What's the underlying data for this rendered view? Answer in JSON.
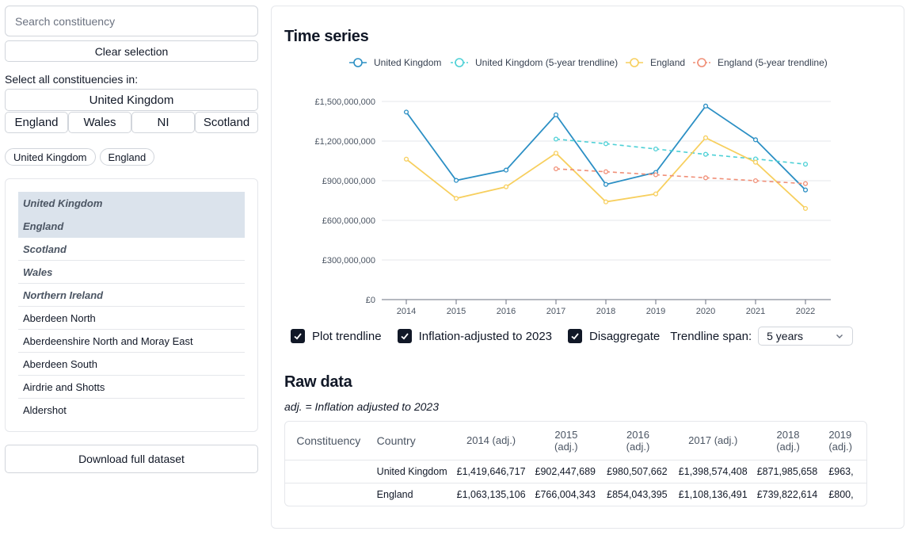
{
  "sidebar": {
    "search_placeholder": "Search constituency",
    "clear_label": "Clear selection",
    "select_all_label": "Select all constituencies in:",
    "uk_button": "United Kingdom",
    "nations": [
      "England",
      "Wales",
      "NI",
      "Scotland"
    ],
    "chips": [
      "United Kingdom",
      "England"
    ],
    "list": [
      {
        "label": "United Kingdom",
        "group": true,
        "selected": true
      },
      {
        "label": "England",
        "group": true,
        "selected": true
      },
      {
        "label": "Scotland",
        "group": true,
        "selected": false
      },
      {
        "label": "Wales",
        "group": true,
        "selected": false
      },
      {
        "label": "Northern Ireland",
        "group": true,
        "selected": false
      },
      {
        "label": "Aberdeen North",
        "group": false,
        "selected": false
      },
      {
        "label": "Aberdeenshire North and Moray East",
        "group": false,
        "selected": false
      },
      {
        "label": "Aberdeen South",
        "group": false,
        "selected": false
      },
      {
        "label": "Airdrie and Shotts",
        "group": false,
        "selected": false
      },
      {
        "label": "Aldershot",
        "group": false,
        "selected": false
      }
    ],
    "download_label": "Download full dataset"
  },
  "timeseries": {
    "title": "Time series",
    "controls": {
      "trendline_label": "Plot trendline",
      "inflation_label": "Inflation-adjusted to 2023",
      "disaggregate_label": "Disaggregate",
      "span_label": "Trendline span:",
      "span_value": "5 years"
    }
  },
  "chart_data": {
    "type": "line",
    "title": "",
    "xlabel": "",
    "ylabel": "",
    "x": [
      2014,
      2015,
      2016,
      2017,
      2018,
      2019,
      2020,
      2021,
      2022
    ],
    "ylim": [
      0,
      1500000000
    ],
    "yticks": [
      0,
      300000000,
      600000000,
      900000000,
      1200000000,
      1500000000
    ],
    "ytick_labels": [
      "£0",
      "£300,000,000",
      "£600,000,000",
      "£900,000,000",
      "£1,200,000,000",
      "£1,500,000,000"
    ],
    "grid": true,
    "legend_position": "top",
    "series": [
      {
        "name": "United Kingdom",
        "color": "#2b8fc4",
        "dashed": false,
        "values": [
          1419646717,
          902447689,
          980507662,
          1398574408,
          871985658,
          963000000,
          1465000000,
          1210000000,
          830000000
        ]
      },
      {
        "name": "United Kingdom (5-year trendline)",
        "color": "#4dd0d6",
        "dashed": true,
        "values": [
          null,
          null,
          null,
          1215000000,
          1180000000,
          1140000000,
          1100000000,
          1065000000,
          1025000000
        ]
      },
      {
        "name": "England",
        "color": "#f7cf5e",
        "dashed": false,
        "values": [
          1063135106,
          766004343,
          854043395,
          1108136491,
          739822614,
          800000000,
          1225000000,
          1040000000,
          690000000
        ]
      },
      {
        "name": "England (5-year trendline)",
        "color": "#f08f77",
        "dashed": true,
        "values": [
          null,
          null,
          null,
          990000000,
          968000000,
          945000000,
          922000000,
          900000000,
          878000000
        ]
      }
    ]
  },
  "rawdata": {
    "title": "Raw data",
    "note": "adj. = Inflation adjusted to 2023",
    "headers": [
      "Constituency",
      "Country",
      "2014 (adj.)",
      "2015 (adj.)",
      "2016 (adj.)",
      "2017 (adj.)",
      "2018 (adj.)",
      "2019 (adj.)"
    ],
    "rows": [
      [
        "",
        "United Kingdom",
        "£1,419,646,717",
        "£902,447,689",
        "£980,507,662",
        "£1,398,574,408",
        "£871,985,658",
        "£963,"
      ],
      [
        "",
        "England",
        "£1,063,135,106",
        "£766,004,343",
        "£854,043,395",
        "£1,108,136,491",
        "£739,822,614",
        "£800,"
      ]
    ]
  }
}
